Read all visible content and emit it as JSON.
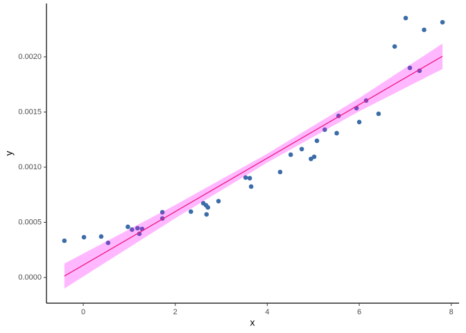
{
  "chart_data": {
    "type": "scatter",
    "x_label": "x",
    "y_label": "y",
    "xlim": [
      -0.8,
      8.17
    ],
    "ylim": [
      -0.000233,
      0.002484
    ],
    "xticks": [
      0,
      2,
      4,
      6,
      8
    ],
    "yticks": [
      {
        "value": 0,
        "label": "0.0000"
      },
      {
        "value": 0.0005,
        "label": "0.0005"
      },
      {
        "value": 0.001,
        "label": "0.0010"
      },
      {
        "value": 0.0015,
        "label": "0.0015"
      },
      {
        "value": 0.002,
        "label": "0.0020"
      }
    ],
    "grid": false,
    "series": [
      {
        "color": "#3b6ca8",
        "x": [
          -0.41,
          0.015,
          0.39,
          0.54,
          0.97,
          1.06,
          1.18,
          1.22,
          1.28,
          1.72,
          1.72,
          2.34,
          2.61,
          2.67,
          2.71,
          2.68,
          2.94,
          3.53,
          3.62,
          3.65,
          4.28,
          4.51,
          4.75,
          4.95,
          5.02,
          5.08,
          5.25,
          5.51,
          5.55,
          5.94,
          6.0,
          6.15,
          6.42,
          6.77,
          7.01,
          7.1,
          7.31,
          7.41,
          7.81
        ],
        "values": [
          0.000333,
          0.000365,
          0.000371,
          0.000314,
          0.000459,
          0.000434,
          0.000447,
          0.000396,
          0.00044,
          0.000591,
          0.000535,
          0.000597,
          0.000673,
          0.000654,
          0.000635,
          0.000572,
          0.000692,
          0.000906,
          0.0009,
          0.000824,
          0.000956,
          0.001113,
          0.001164,
          0.001075,
          0.001094,
          0.001239,
          0.00134,
          0.001308,
          0.001465,
          0.001535,
          0.001409,
          0.001604,
          0.001484,
          0.002094,
          0.002352,
          0.0019,
          0.001874,
          0.002245,
          0.002314
        ]
      }
    ],
    "fit": {
      "color": "#f0157f",
      "fill": "#ff00ff",
      "x": [
        -0.41,
        2,
        4,
        6,
        7.81
      ],
      "values": [
        1.26e-05,
        0.000597,
        0.001082,
        0.001567,
        0.002006
      ],
      "lower": [
        -0.0001,
        0.000537,
        0.001042,
        0.001507,
        0.00189
      ],
      "upper": [
        0.000126,
        0.000657,
        0.001122,
        0.001627,
        0.00212
      ]
    }
  }
}
